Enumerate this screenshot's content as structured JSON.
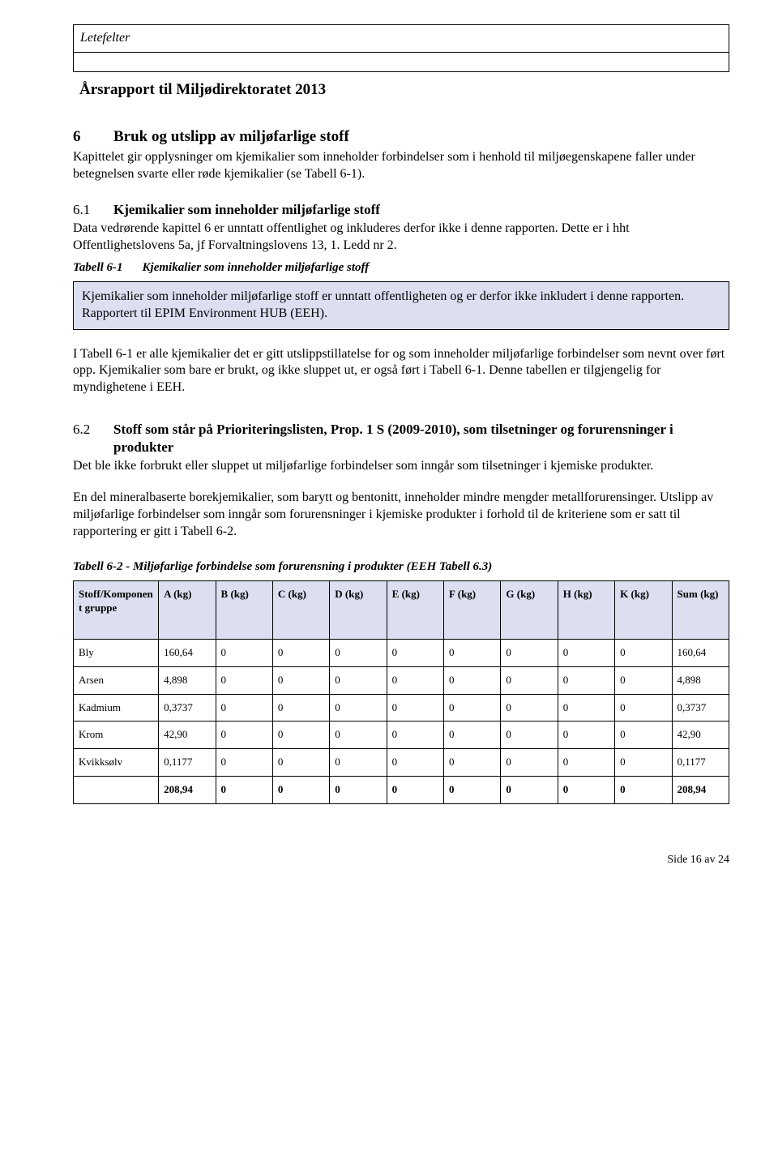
{
  "header": {
    "label": "Letefelter",
    "report_title": "Årsrapport til Miljødirektoratet 2013"
  },
  "section6": {
    "num": "6",
    "title": "Bruk og utslipp av miljøfarlige stoff",
    "intro": "Kapittelet gir opplysninger om kjemikalier som inneholder forbindelser som i henhold til miljøegenskapene faller under betegnelsen svarte eller røde kjemikalier (se Tabell 6-1)."
  },
  "section61": {
    "num": "6.1",
    "title": "Kjemikalier som inneholder miljøfarlige stoff",
    "body": "Data vedrørende kapittel 6 er unntatt offentlighet og inkluderes derfor ikke i denne rapporten. Dette er i hht Offentlighetslovens 5a, jf Forvaltningslovens 13, 1. Ledd nr 2.",
    "caption_label": "Tabell 6-1",
    "caption_text": "Kjemikalier som inneholder miljøfarlige stoff",
    "infobox": "Kjemikalier som inneholder miljøfarlige stoff er unntatt offentligheten og er derfor ikke inkludert i denne rapporten. Rapportert til EPIM Environment HUB (EEH).",
    "closing": "I Tabell 6-1 er alle kjemikalier det er gitt utslippstillatelse for og som inneholder miljøfarlige forbindelser som nevnt over ført opp. Kjemikalier som bare er brukt, og ikke sluppet ut, er også ført i Tabell 6-1. Denne tabellen er tilgjengelig for myndighetene i EEH."
  },
  "section62": {
    "num": "6.2",
    "title": "Stoff som står på Prioriteringslisten, Prop. 1 S (2009-2010), som tilsetninger og forurensninger i produkter",
    "p1": "Det ble ikke forbrukt eller sluppet ut miljøfarlige forbindelser som inngår som tilsetninger i kjemiske produkter.",
    "p2": "En del mineralbaserte borekjemikalier, som barytt og bentonitt, inneholder mindre mengder metallforurensinger. Utslipp av miljøfarlige forbindelser som inngår som forurensninger i kjemiske produkter i forhold til de kriteriene som er satt til rapportering er gitt i Tabell 6-2.",
    "caption": "Tabell 6-2 - Miljøfarlige forbindelse som forurensning i produkter (EEH Tabell 6.3)"
  },
  "table62": {
    "columns": [
      "Stoff/Komponent gruppe",
      "A (kg)",
      "B (kg)",
      "C (kg)",
      "D (kg)",
      "E (kg)",
      "F (kg)",
      "G (kg)",
      "H (kg)",
      "K (kg)",
      "Sum (kg)"
    ],
    "rows": [
      [
        "Bly",
        "160,64",
        "0",
        "0",
        "0",
        "0",
        "0",
        "0",
        "0",
        "0",
        "160,64"
      ],
      [
        "Arsen",
        "4,898",
        "0",
        "0",
        "0",
        "0",
        "0",
        "0",
        "0",
        "0",
        "4,898"
      ],
      [
        "Kadmium",
        "0,3737",
        "0",
        "0",
        "0",
        "0",
        "0",
        "0",
        "0",
        "0",
        "0,3737"
      ],
      [
        "Krom",
        "42,90",
        "0",
        "0",
        "0",
        "0",
        "0",
        "0",
        "0",
        "0",
        "42,90"
      ],
      [
        "Kvikksølv",
        "0,1177",
        "0",
        "0",
        "0",
        "0",
        "0",
        "0",
        "0",
        "0",
        "0,1177"
      ],
      [
        "",
        "208,94",
        "0",
        "0",
        "0",
        "0",
        "0",
        "0",
        "0",
        "0",
        "208,94"
      ]
    ],
    "header_bg": "#dcdff0",
    "border_color": "#000000"
  },
  "footer": "Side 16 av 24"
}
